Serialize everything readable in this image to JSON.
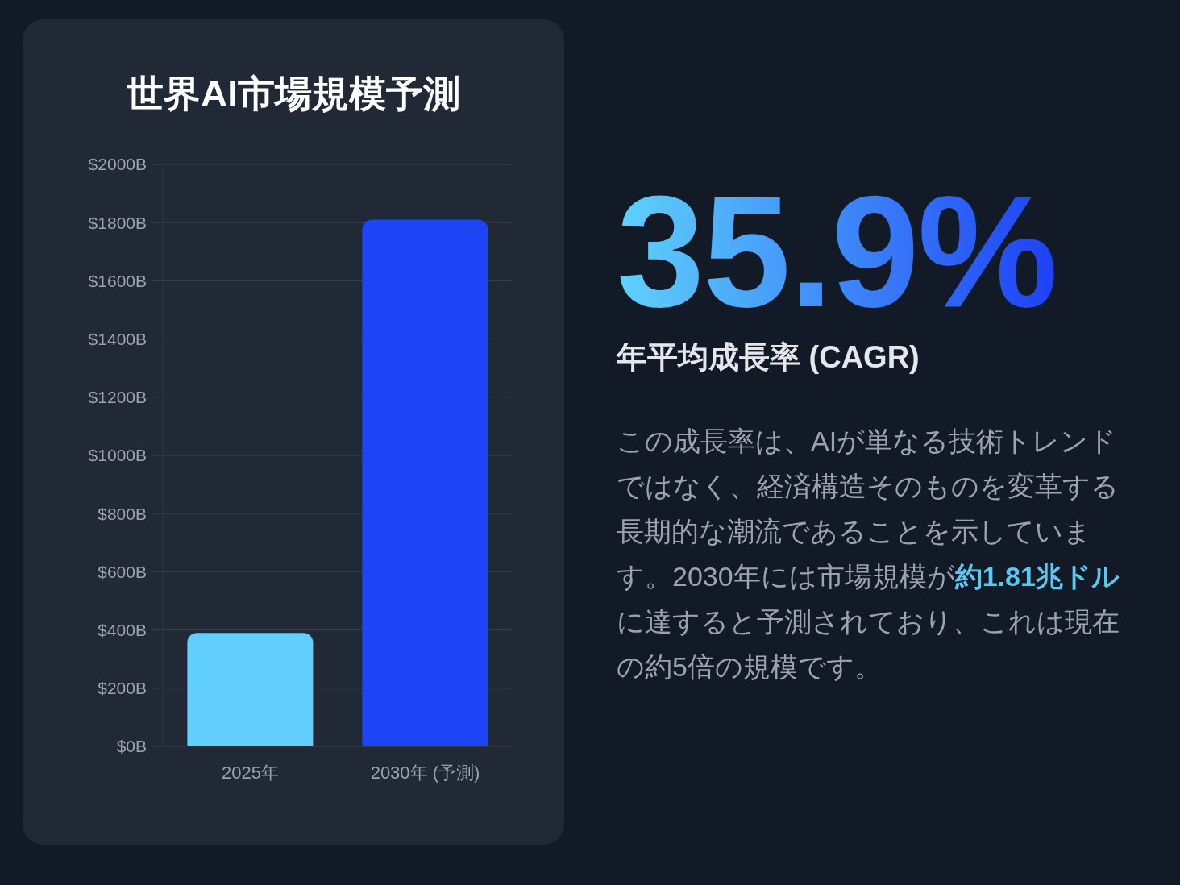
{
  "chart_data": [
    {
      "type": "bar",
      "title": "世界AI市場規模予測",
      "categories": [
        "2025年",
        "2030年 (予測)"
      ],
      "values": [
        390,
        1810
      ],
      "colors": [
        "#61cefb",
        "#1d45f5"
      ],
      "ylim": [
        0,
        2000
      ],
      "yticks": [
        {
          "value": 0,
          "label": "$0B"
        },
        {
          "value": 200,
          "label": "$200B"
        },
        {
          "value": 400,
          "label": "$400B"
        },
        {
          "value": 600,
          "label": "$600B"
        },
        {
          "value": 800,
          "label": "$800B"
        },
        {
          "value": 1000,
          "label": "$1000B"
        },
        {
          "value": 1200,
          "label": "$1200B"
        },
        {
          "value": 1400,
          "label": "$1400B"
        },
        {
          "value": 1600,
          "label": "$1600B"
        },
        {
          "value": 1800,
          "label": "$1800B"
        },
        {
          "value": 2000,
          "label": "$2000B"
        }
      ],
      "grid": "y"
    },
    {
      "type": "other",
      "title": "35.9%",
      "subtitle": "年平均成長率 (CAGR)",
      "annotations": [
        "この成長率は、AIが単なる技術トレンドではなく、経済構造そのものを変革する長期的な潮流であることを示しています。2030年には市場規模が",
        "約1.81兆ドル",
        "に達すると予測されており、これは現在の約5倍の規模です。"
      ]
    }
  ]
}
